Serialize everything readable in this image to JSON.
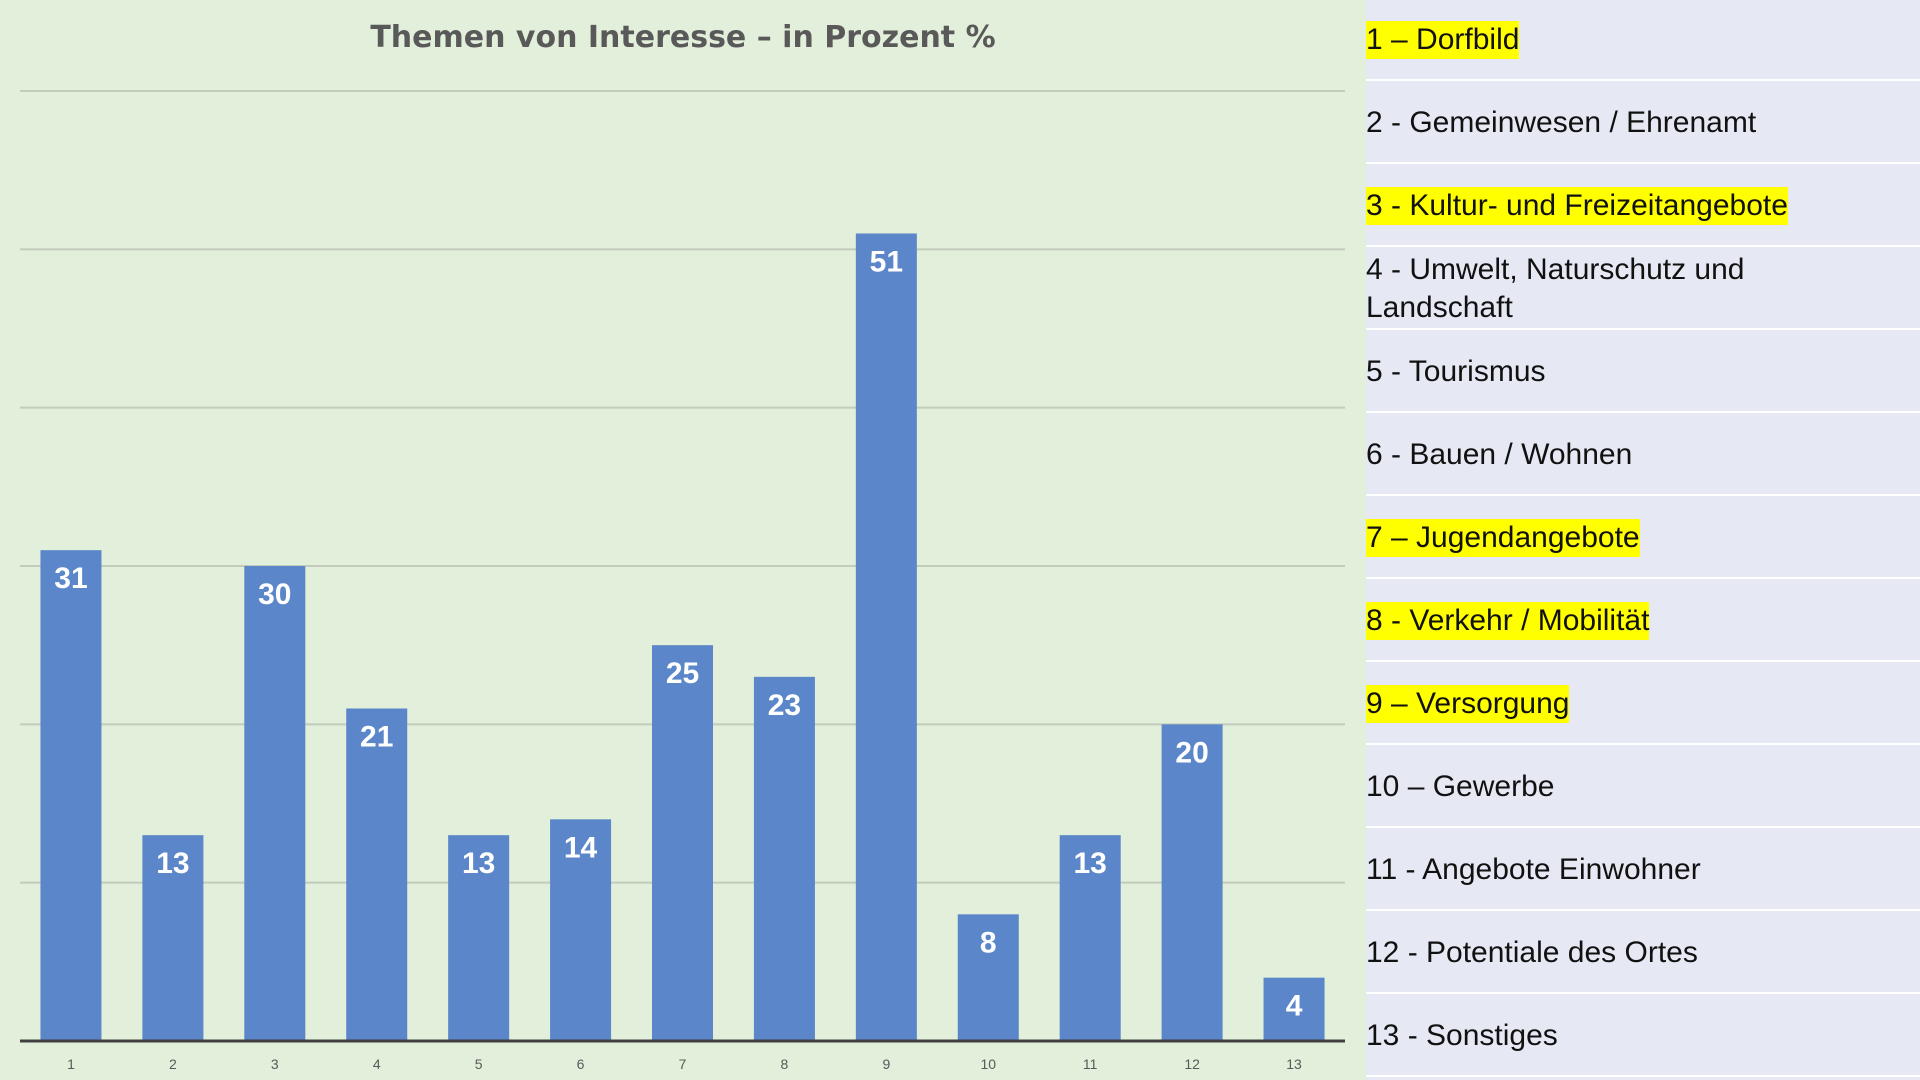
{
  "chart_data": {
    "type": "bar",
    "title": "Themen von Interesse – in Prozent %",
    "categories": [
      "1",
      "2",
      "3",
      "4",
      "5",
      "6",
      "7",
      "8",
      "9",
      "10",
      "11",
      "12",
      "13"
    ],
    "values": [
      31,
      13,
      30,
      21,
      13,
      14,
      25,
      23,
      51,
      8,
      13,
      20,
      4
    ],
    "data_labels": [
      "31",
      "13",
      "30",
      "21",
      "13",
      "14",
      "25",
      "23",
      "51",
      "8",
      "13",
      "20",
      "4"
    ],
    "ylim": [
      0,
      60
    ],
    "grid": true,
    "bar_color": "#5b86c9",
    "background_color": "#e2efda"
  },
  "legend": {
    "background_color": "#e6e9f4",
    "highlight_color": "#ffff00",
    "items": [
      {
        "text": "1 – Dorfbild",
        "highlighted": true
      },
      {
        "text": "2 - Gemeinwesen / Ehrenamt",
        "highlighted": false
      },
      {
        "text": "3 - Kultur- und Freizeitangebote",
        "highlighted": true
      },
      {
        "text": "4 - Umwelt, Naturschutz und Landschaft",
        "highlighted": false
      },
      {
        "text": "5 - Tourismus",
        "highlighted": false
      },
      {
        "text": "6 - Bauen / Wohnen",
        "highlighted": false
      },
      {
        "text": "7 – Jugendangebote",
        "highlighted": true
      },
      {
        "text": "8 - Verkehr / Mobilität",
        "highlighted": true
      },
      {
        "text": "9 – Versorgung",
        "highlighted": true
      },
      {
        "text": "10 – Gewerbe",
        "highlighted": false
      },
      {
        "text": "11 - Angebote Einwohner",
        "highlighted": false
      },
      {
        "text": "12 - Potentiale des Ortes",
        "highlighted": false
      },
      {
        "text": "13 - Sonstiges",
        "highlighted": false
      }
    ]
  }
}
